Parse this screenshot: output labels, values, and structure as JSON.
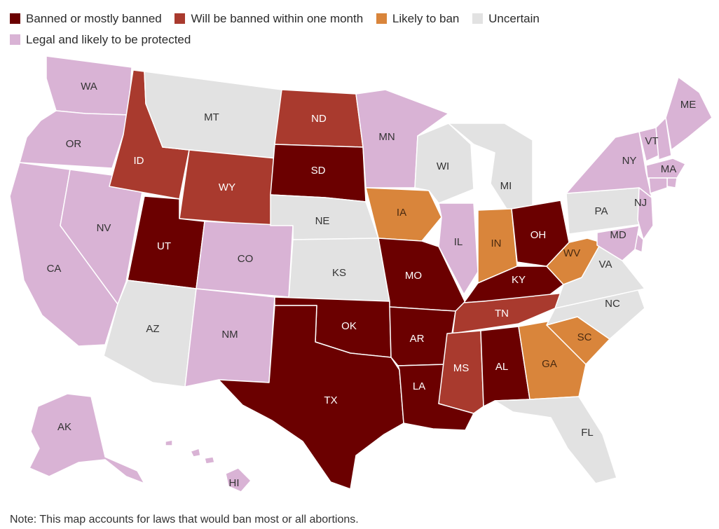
{
  "legend": [
    {
      "label": "Banned or mostly banned",
      "color": "#6b0000"
    },
    {
      "label": "Will be banned within one month",
      "color": "#a93a2e"
    },
    {
      "label": "Likely to ban",
      "color": "#d9853b"
    },
    {
      "label": "Uncertain",
      "color": "#e2e2e2"
    },
    {
      "label": "Legal and likely to be protected",
      "color": "#d9b3d5"
    }
  ],
  "note": "Note: This map accounts for laws that would ban most or all abortions.",
  "states": {
    "WA": {
      "label": "WA",
      "status": "legal"
    },
    "OR": {
      "label": "OR",
      "status": "legal"
    },
    "CA": {
      "label": "CA",
      "status": "legal"
    },
    "NV": {
      "label": "NV",
      "status": "legal"
    },
    "ID": {
      "label": "ID",
      "status": "soon"
    },
    "MT": {
      "label": "MT",
      "status": "uncertain"
    },
    "WY": {
      "label": "WY",
      "status": "soon"
    },
    "UT": {
      "label": "UT",
      "status": "banned"
    },
    "AZ": {
      "label": "AZ",
      "status": "uncertain"
    },
    "CO": {
      "label": "CO",
      "status": "legal"
    },
    "NM": {
      "label": "NM",
      "status": "legal"
    },
    "ND": {
      "label": "ND",
      "status": "soon"
    },
    "SD": {
      "label": "SD",
      "status": "banned"
    },
    "NE": {
      "label": "NE",
      "status": "uncertain"
    },
    "KS": {
      "label": "KS",
      "status": "uncertain"
    },
    "OK": {
      "label": "OK",
      "status": "banned"
    },
    "TX": {
      "label": "TX",
      "status": "banned"
    },
    "MN": {
      "label": "MN",
      "status": "legal"
    },
    "IA": {
      "label": "IA",
      "status": "likely"
    },
    "MO": {
      "label": "MO",
      "status": "banned"
    },
    "AR": {
      "label": "AR",
      "status": "banned"
    },
    "LA": {
      "label": "LA",
      "status": "banned"
    },
    "WI": {
      "label": "WI",
      "status": "uncertain"
    },
    "IL": {
      "label": "IL",
      "status": "legal"
    },
    "MI": {
      "label": "MI",
      "status": "uncertain"
    },
    "IN": {
      "label": "IN",
      "status": "likely"
    },
    "OH": {
      "label": "OH",
      "status": "banned"
    },
    "KY": {
      "label": "KY",
      "status": "banned"
    },
    "TN": {
      "label": "TN",
      "status": "soon"
    },
    "MS": {
      "label": "MS",
      "status": "soon"
    },
    "AL": {
      "label": "AL",
      "status": "banned"
    },
    "GA": {
      "label": "GA",
      "status": "likely"
    },
    "FL": {
      "label": "FL",
      "status": "uncertain"
    },
    "SC": {
      "label": "SC",
      "status": "likely"
    },
    "NC": {
      "label": "NC",
      "status": "uncertain"
    },
    "VA": {
      "label": "VA",
      "status": "uncertain"
    },
    "WV": {
      "label": "WV",
      "status": "likely"
    },
    "PA": {
      "label": "PA",
      "status": "uncertain"
    },
    "NY": {
      "label": "NY",
      "status": "legal"
    },
    "VT": {
      "label": "VT",
      "status": "legal"
    },
    "NH": {
      "label": "",
      "status": "legal"
    },
    "ME": {
      "label": "ME",
      "status": "legal"
    },
    "MA": {
      "label": "MA",
      "status": "legal"
    },
    "RI": {
      "label": "",
      "status": "legal"
    },
    "CT": {
      "label": "",
      "status": "legal"
    },
    "NJ": {
      "label": "NJ",
      "status": "legal"
    },
    "DE": {
      "label": "",
      "status": "legal"
    },
    "MD": {
      "label": "MD",
      "status": "legal"
    },
    "AK": {
      "label": "AK",
      "status": "legal"
    },
    "HI": {
      "label": "HI",
      "status": "legal"
    }
  },
  "status_colors": {
    "banned": "#6b0000",
    "soon": "#a93a2e",
    "likely": "#d9853b",
    "uncertain": "#e2e2e2",
    "legal": "#d9b3d5"
  },
  "label_colors": {
    "banned": "#ffffff",
    "soon": "#ffffff",
    "likely": "#4a2a10",
    "uncertain": "#333333",
    "legal": "#333333"
  }
}
